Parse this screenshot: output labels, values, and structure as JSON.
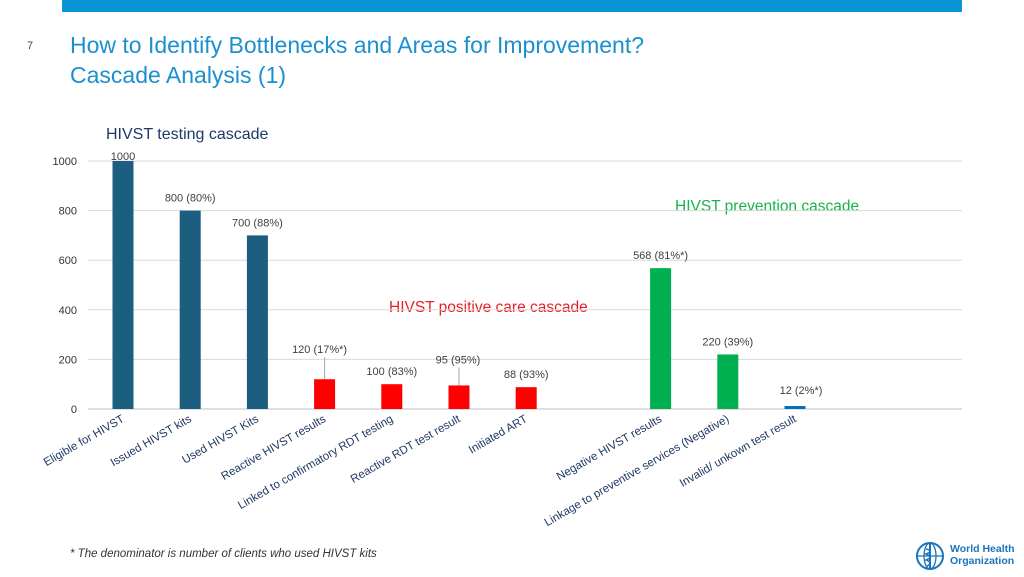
{
  "slide": {
    "number": "7",
    "title_line1": "How to Identify Bottlenecks and Areas for Improvement?",
    "title_line2": "Cascade Analysis (1)",
    "footnote": "* The denominator is number of clients who used HIVST kits",
    "logo_line1": "World Health",
    "logo_line2": "Organization"
  },
  "colors": {
    "accent": "#0a93d5",
    "testing": "#1b5e80",
    "positive": "#ff0000",
    "prevention": "#00b050",
    "invalid": "#0070c0"
  },
  "chart_data": {
    "type": "bar",
    "title": "HIVST testing cascade",
    "group_labels": {
      "prevention": "HIVST prevention cascade",
      "positive": "HIVST positive care cascade"
    },
    "ylim": [
      0,
      1000
    ],
    "yticks": [
      0,
      200,
      400,
      600,
      800,
      1000
    ],
    "categories": [
      "Eligible for HIVST",
      "Issued HIVST kits",
      "Used HIVST Kits",
      "Reactive HIVST results",
      "Linked to confirmatory RDT testing",
      "Reactive RDT test result",
      "Initiated ART",
      "Negative HIVST results",
      "Linkage to preventive services (Negative)",
      "Invalid/ unkown test result"
    ],
    "values": [
      1000,
      800,
      700,
      120,
      100,
      95,
      88,
      568,
      220,
      12
    ],
    "data_labels": [
      "1000",
      "800 (80%)",
      "700 (88%)",
      "120 (17%*)",
      "100 (83%)",
      "95 (95%)",
      "88 (93%)",
      "568 (81%*)",
      "220 (39%)",
      "12 (2%*)"
    ],
    "groups": [
      "testing",
      "testing",
      "testing",
      "positive",
      "positive",
      "positive",
      "positive",
      "prevention",
      "prevention",
      "invalid"
    ]
  }
}
